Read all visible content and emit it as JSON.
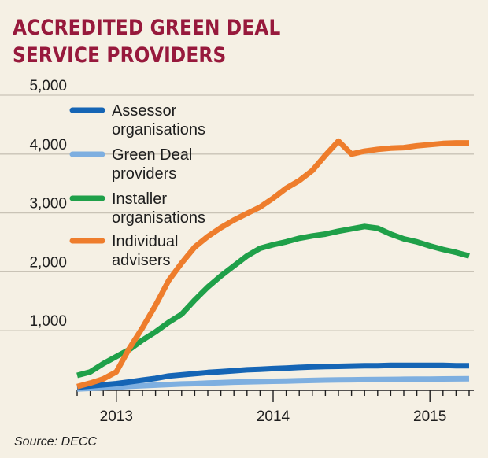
{
  "chart_data": {
    "type": "line",
    "title": "Accredited Green Deal\nservice providers",
    "xlabel": "",
    "ylabel": "",
    "x": [
      "2012-10",
      "2012-11",
      "2012-12",
      "2013-01",
      "2013-02",
      "2013-03",
      "2013-04",
      "2013-05",
      "2013-06",
      "2013-07",
      "2013-08",
      "2013-09",
      "2013-10",
      "2013-11",
      "2013-12",
      "2014-01",
      "2014-02",
      "2014-03",
      "2014-04",
      "2014-05",
      "2014-06",
      "2014-07",
      "2014-08",
      "2014-09",
      "2014-10",
      "2014-11",
      "2014-12",
      "2015-01",
      "2015-02",
      "2015-03",
      "2015-04"
    ],
    "xticks": [
      {
        "value": 2013,
        "label": "2013"
      },
      {
        "value": 2014,
        "label": "2014"
      },
      {
        "value": 2015,
        "label": "2015"
      }
    ],
    "ylim": [
      0,
      5000
    ],
    "yticks": [
      {
        "value": 1000,
        "label": "1,000"
      },
      {
        "value": 2000,
        "label": "2,000"
      },
      {
        "value": 3000,
        "label": "3,000"
      },
      {
        "value": 4000,
        "label": "4,000"
      },
      {
        "value": 5000,
        "label": "5,000"
      }
    ],
    "series": [
      {
        "name": "Assessor organisations",
        "legend_lines": [
          "Assessor",
          "organisations"
        ],
        "color": "#1565b5",
        "values": [
          40,
          60,
          80,
          100,
          130,
          160,
          190,
          230,
          250,
          270,
          290,
          305,
          320,
          335,
          345,
          355,
          365,
          375,
          385,
          390,
          395,
          400,
          405,
          405,
          410,
          410,
          410,
          410,
          410,
          405,
          405
        ]
      },
      {
        "name": "Green Deal providers",
        "legend_lines": [
          "Green Deal",
          "providers"
        ],
        "color": "#7eafe0",
        "values": [
          10,
          20,
          30,
          40,
          55,
          65,
          75,
          85,
          95,
          100,
          110,
          118,
          125,
          130,
          135,
          140,
          145,
          150,
          155,
          160,
          163,
          166,
          168,
          170,
          172,
          175,
          177,
          178,
          180,
          182,
          185
        ]
      },
      {
        "name": "Installer organisations",
        "legend_lines": [
          "Installer",
          "organisations"
        ],
        "color": "#1fa049",
        "values": [
          240,
          300,
          440,
          560,
          680,
          840,
          980,
          1140,
          1280,
          1520,
          1740,
          1930,
          2100,
          2270,
          2400,
          2460,
          2510,
          2570,
          2610,
          2640,
          2690,
          2730,
          2770,
          2740,
          2640,
          2560,
          2510,
          2440,
          2380,
          2330,
          2270
        ]
      },
      {
        "name": "Individual advisers",
        "legend_lines": [
          "Individual",
          "advisers"
        ],
        "color": "#ee7d2c",
        "values": [
          50,
          110,
          180,
          300,
          700,
          1050,
          1430,
          1850,
          2150,
          2420,
          2600,
          2750,
          2880,
          2990,
          3100,
          3250,
          3420,
          3550,
          3720,
          3980,
          4220,
          4000,
          4050,
          4080,
          4100,
          4110,
          4140,
          4160,
          4180,
          4190,
          4190
        ]
      }
    ]
  },
  "footer": {
    "source": "Source: DECC"
  }
}
